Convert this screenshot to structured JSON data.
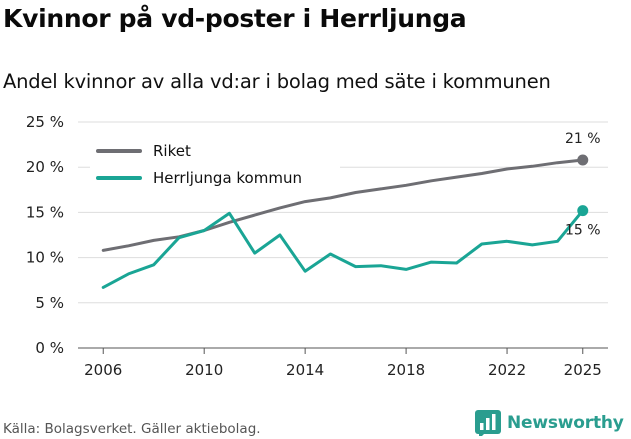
{
  "title": "Kvinnor på vd-poster i Herrljunga",
  "subtitle": "Andel kvinnor av alla vd:ar i bolag med säte i kommunen",
  "source": "Källa: Bolagsverket. Gäller aktiebolag.",
  "brand": "Newsworthy",
  "colors": {
    "riket": "#6e6e73",
    "kommun": "#1aa595",
    "grid": "#dddddd",
    "brand": "#2a9d8f"
  },
  "chart_data": {
    "type": "line",
    "title": "Kvinnor på vd-poster i Herrljunga",
    "subtitle": "Andel kvinnor av alla vd:ar i bolag med säte i kommunen",
    "xlabel": "",
    "ylabel": "",
    "x": [
      2006,
      2007,
      2008,
      2009,
      2010,
      2011,
      2012,
      2013,
      2014,
      2015,
      2016,
      2017,
      2018,
      2019,
      2020,
      2021,
      2022,
      2023,
      2024,
      2025
    ],
    "xlim": [
      2005,
      2026
    ],
    "ylim": [
      0,
      25
    ],
    "x_ticks": [
      2006,
      2010,
      2014,
      2018,
      2022,
      2025
    ],
    "y_ticks": [
      0,
      5,
      10,
      15,
      20,
      25
    ],
    "x_tick_labels": [
      "2006",
      "2010",
      "2014",
      "2018",
      "2022",
      "2025"
    ],
    "y_tick_labels": [
      "0 %",
      "5 %",
      "10 %",
      "15 %",
      "20 %",
      "25 %"
    ],
    "grid": true,
    "legend_position": "top-left",
    "series": [
      {
        "name": "Riket",
        "color": "#6e6e73",
        "values": [
          10.8,
          11.3,
          11.9,
          12.3,
          13.0,
          13.9,
          14.7,
          15.5,
          16.2,
          16.6,
          17.2,
          17.6,
          18.0,
          18.5,
          18.9,
          19.3,
          19.8,
          20.1,
          20.5,
          20.8
        ],
        "end_label": "21 %"
      },
      {
        "name": "Herrljunga kommun",
        "color": "#1aa595",
        "values": [
          6.7,
          8.2,
          9.2,
          12.2,
          13.0,
          14.9,
          10.5,
          12.5,
          8.5,
          10.4,
          9.0,
          9.1,
          8.7,
          9.5,
          9.4,
          11.5,
          11.8,
          11.4,
          11.8,
          15.2
        ],
        "end_label": "15 %"
      }
    ]
  }
}
